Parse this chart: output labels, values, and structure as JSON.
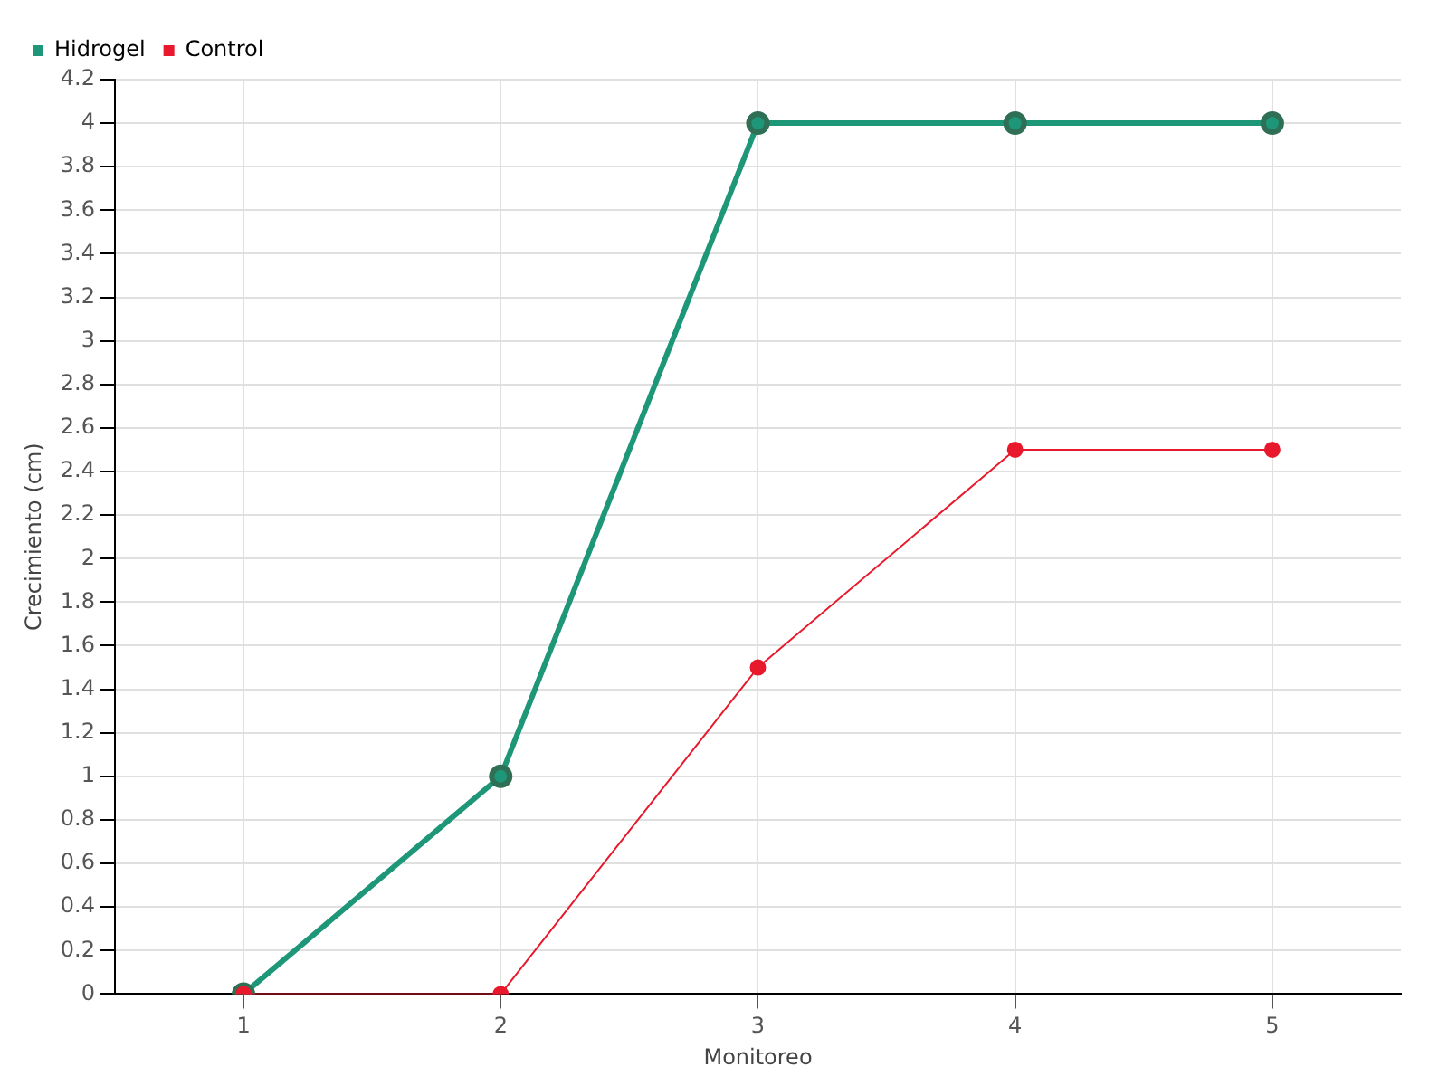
{
  "chart_data": {
    "type": "line",
    "xlabel": "Monitoreo",
    "ylabel": "Crecimiento (cm)",
    "categories": [
      "1",
      "2",
      "3",
      "4",
      "5"
    ],
    "series": [
      {
        "name": "Hidrogel",
        "color": "#1e9678",
        "values": [
          0,
          1,
          4,
          4,
          4
        ]
      },
      {
        "name": "Control",
        "color": "#e8192c",
        "values": [
          0,
          0,
          1.5,
          2.5,
          2.5
        ]
      }
    ],
    "ylim": [
      0,
      4.2
    ],
    "yticks": [
      0,
      0.2,
      0.4,
      0.6,
      0.8,
      1,
      1.2,
      1.4,
      1.6,
      1.8,
      2,
      2.2,
      2.4,
      2.6,
      2.8,
      3,
      3.2,
      3.4,
      3.6,
      3.8,
      4,
      4.2
    ],
    "grid": true,
    "legend": "top left",
    "marker": "circle",
    "line_style": "solid"
  }
}
